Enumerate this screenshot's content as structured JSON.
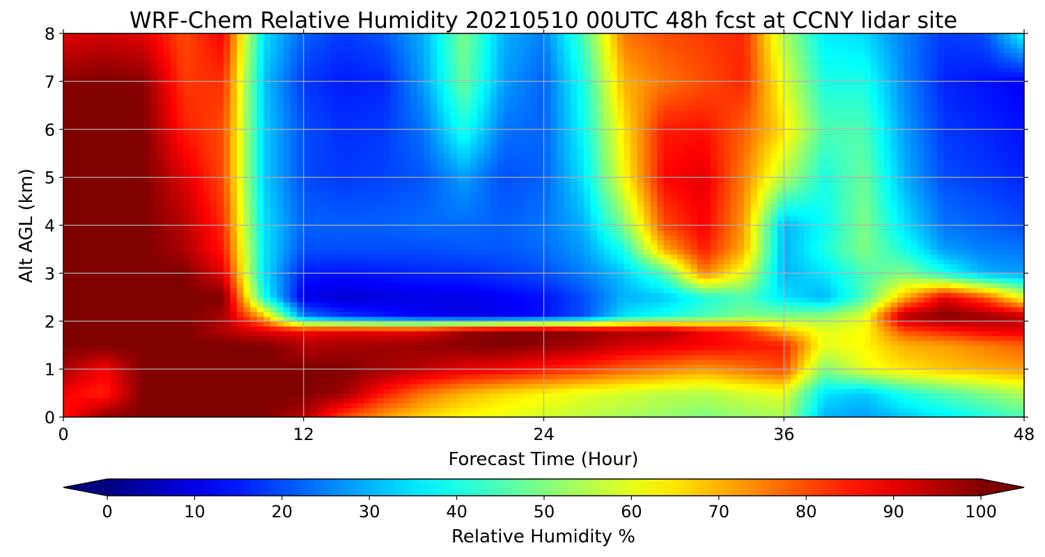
{
  "chart_data": {
    "type": "heatmap",
    "title": "WRF-Chem Relative Humidity 20210510 00UTC 48h fcst at CCNY lidar site",
    "xlabel": "Forecast Time (Hour)",
    "ylabel": "Alt AGL (km)",
    "xlim": [
      0,
      48
    ],
    "ylim": [
      0,
      8
    ],
    "xticks": [
      "0",
      "12",
      "24",
      "36",
      "48"
    ],
    "yticks": [
      "0",
      "1",
      "2",
      "3",
      "4",
      "5",
      "6",
      "7",
      "8"
    ],
    "grid": true,
    "colorbar": {
      "label": "Relative Humidity %",
      "ticks": [
        "0",
        "10",
        "20",
        "30",
        "40",
        "50",
        "60",
        "70",
        "80",
        "90",
        "100"
      ],
      "range": [
        0,
        100
      ],
      "colormap": "jet",
      "extend": "both"
    },
    "x": [
      0,
      2,
      4,
      6,
      8,
      10,
      12,
      14,
      16,
      18,
      20,
      22,
      24,
      26,
      28,
      30,
      32,
      34,
      36,
      38,
      40,
      42,
      44,
      46,
      48
    ],
    "y": [
      0,
      0.5,
      1,
      1.5,
      1.8,
      2.1,
      2.5,
      3,
      3.5,
      4,
      5,
      6,
      7,
      8
    ],
    "z": [
      [
        85,
        99,
        100,
        100,
        100,
        100,
        95,
        80,
        72,
        66,
        62,
        60,
        58,
        56,
        54,
        52,
        50,
        52,
        54,
        30,
        28,
        32,
        36,
        40,
        45
      ],
      [
        88,
        84,
        100,
        100,
        100,
        100,
        100,
        97,
        85,
        76,
        70,
        66,
        63,
        60,
        58,
        56,
        55,
        58,
        60,
        35,
        32,
        40,
        45,
        50,
        55
      ],
      [
        96,
        88,
        100,
        100,
        100,
        100,
        100,
        100,
        97,
        94,
        90,
        88,
        85,
        82,
        78,
        75,
        72,
        76,
        80,
        50,
        60,
        65,
        68,
        70,
        72
      ],
      [
        100,
        100,
        100,
        100,
        100,
        100,
        95,
        96,
        97,
        98,
        99,
        100,
        98,
        96,
        92,
        90,
        88,
        86,
        85,
        60,
        63,
        70,
        72,
        75,
        78
      ],
      [
        100,
        100,
        100,
        100,
        95,
        90,
        88,
        90,
        89,
        90,
        97,
        100,
        100,
        98,
        95,
        96,
        88,
        84,
        70,
        60,
        62,
        80,
        84,
        88,
        90
      ],
      [
        100,
        100,
        100,
        100,
        96,
        70,
        25,
        18,
        15,
        12,
        10,
        11,
        14,
        20,
        35,
        40,
        45,
        50,
        50,
        52,
        60,
        96,
        100,
        98,
        95
      ],
      [
        100,
        100,
        100,
        100,
        100,
        40,
        10,
        8,
        9,
        10,
        10,
        12,
        14,
        20,
        30,
        32,
        40,
        45,
        35,
        30,
        45,
        70,
        90,
        80,
        60
      ],
      [
        100,
        100,
        100,
        100,
        90,
        35,
        15,
        14,
        15,
        16,
        16,
        18,
        20,
        25,
        32,
        45,
        75,
        60,
        30,
        35,
        45,
        50,
        40,
        30,
        28
      ],
      [
        100,
        100,
        100,
        96,
        85,
        36,
        20,
        20,
        20,
        20,
        21,
        21,
        23,
        28,
        40,
        70,
        85,
        70,
        30,
        40,
        50,
        40,
        28,
        25,
        24
      ],
      [
        100,
        100,
        100,
        95,
        83,
        35,
        22,
        22,
        22,
        23,
        23,
        22,
        24,
        30,
        50,
        80,
        88,
        72,
        30,
        38,
        50,
        35,
        24,
        22,
        20
      ],
      [
        100,
        100,
        100,
        91,
        80,
        33,
        20,
        18,
        19,
        21,
        28,
        20,
        22,
        35,
        62,
        87,
        90,
        75,
        55,
        40,
        48,
        30,
        20,
        18,
        16
      ],
      [
        100,
        100,
        100,
        85,
        80,
        33,
        20,
        17,
        18,
        24,
        40,
        24,
        22,
        38,
        65,
        85,
        86,
        78,
        65,
        45,
        45,
        28,
        18,
        16,
        14
      ],
      [
        99,
        100,
        99,
        82,
        83,
        32,
        18,
        15,
        16,
        28,
        48,
        28,
        22,
        40,
        70,
        76,
        80,
        84,
        60,
        40,
        40,
        26,
        16,
        14,
        12
      ],
      [
        90,
        92,
        90,
        80,
        88,
        35,
        22,
        18,
        21,
        30,
        50,
        30,
        25,
        45,
        76,
        80,
        82,
        84,
        55,
        36,
        34,
        25,
        18,
        20,
        38
      ]
    ]
  }
}
